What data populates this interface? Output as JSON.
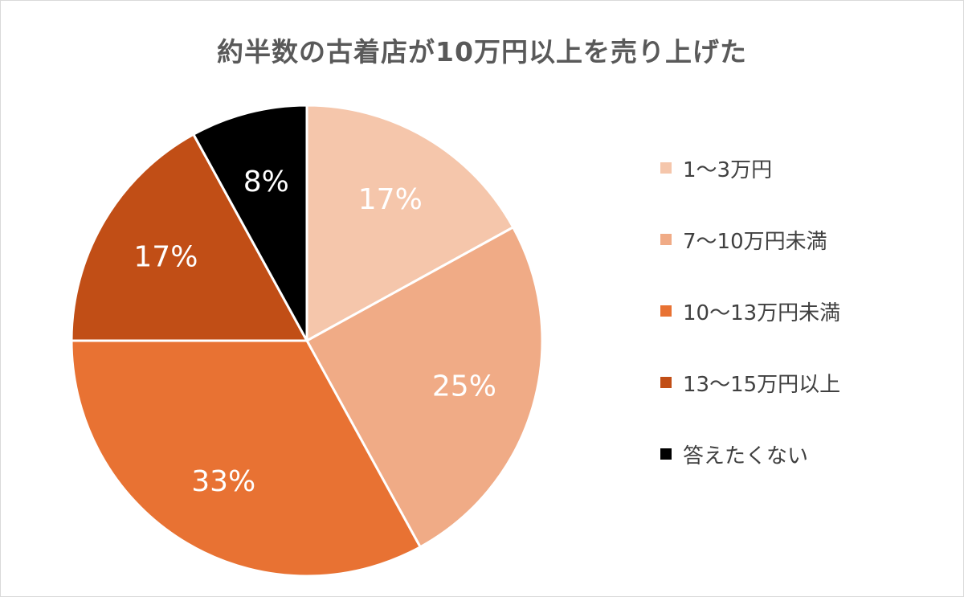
{
  "chart_data": {
    "type": "pie",
    "title": "約半数の古着店が10万円以上を売り上げた",
    "start_angle_deg": 0,
    "direction": "clockwise",
    "legend_position": "right",
    "slices": [
      {
        "label": "1〜3万円",
        "value": 17,
        "value_label": "17%",
        "color": "#f5c6ab"
      },
      {
        "label": "7〜10万円未満",
        "value": 25,
        "value_label": "25%",
        "color": "#f0ab86"
      },
      {
        "label": "10〜13万円未満",
        "value": 33,
        "value_label": "33%",
        "color": "#e87233"
      },
      {
        "label": "13〜15万円以上",
        "value": 17,
        "value_label": "17%",
        "color": "#c14e16"
      },
      {
        "label": "答えたくない",
        "value": 8,
        "value_label": "8%",
        "color": "#000000"
      }
    ],
    "separator_color": "#ffffff"
  }
}
